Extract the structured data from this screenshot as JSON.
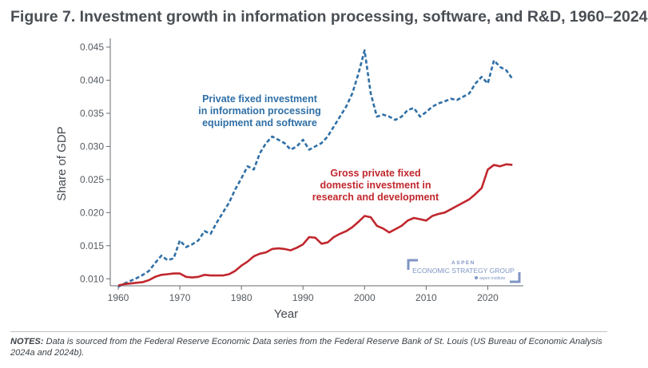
{
  "title": "Figure 7. Investment growth in information processing, software, and R&D, 1960–2024",
  "notes": {
    "label": "NOTES:",
    "text": "Data is sourced from the Federal Reserve Economic Data series from the Federal Reserve Bank of St. Louis (US Bureau of Economic Analysis 2024a and 2024b)."
  },
  "logo": {
    "line1": "ASPEN",
    "line2": "ECONOMIC STRATEGY GROUP",
    "line3": "aspen institute"
  },
  "chart_data": {
    "type": "line",
    "title": "Figure 7. Investment growth in information processing, software, and R&D, 1960–2024",
    "xlabel": "Year",
    "ylabel": "Share of GDP",
    "xlim": [
      1960,
      2025
    ],
    "ylim": [
      0.0075,
      0.045
    ],
    "xticks": [
      1960,
      1970,
      1980,
      1990,
      2000,
      2010,
      2020
    ],
    "xtick_labels": [
      "1960",
      "1970",
      "1980",
      "1990",
      "2000",
      "2010",
      "2020"
    ],
    "yticks": [
      0.01,
      0.015,
      0.02,
      0.025,
      0.03,
      0.035,
      0.04,
      0.045
    ],
    "ytick_labels": [
      "0.010",
      "0.015",
      "0.020",
      "0.025",
      "0.030",
      "0.035",
      "0.040",
      "0.045"
    ],
    "grid": false,
    "series": [
      {
        "name": "Private fixed investment in information processing equipment and software",
        "label_lines": [
          "Private fixed investment",
          "in information processing",
          "equipment and software"
        ],
        "color": "#2f6fa6",
        "style": "dashed",
        "x": [
          1960,
          1961,
          1962,
          1963,
          1964,
          1965,
          1966,
          1967,
          1968,
          1969,
          1970,
          1971,
          1972,
          1973,
          1974,
          1975,
          1976,
          1977,
          1978,
          1979,
          1980,
          1981,
          1982,
          1983,
          1984,
          1985,
          1986,
          1987,
          1988,
          1989,
          1990,
          1991,
          1992,
          1993,
          1994,
          1995,
          1996,
          1997,
          1998,
          1999,
          2000,
          2001,
          2002,
          2003,
          2004,
          2005,
          2006,
          2007,
          2008,
          2009,
          2010,
          2011,
          2012,
          2013,
          2014,
          2015,
          2016,
          2017,
          2018,
          2019,
          2020,
          2021,
          2022,
          2023,
          2024
        ],
        "values": [
          0.0088,
          0.0093,
          0.0097,
          0.0101,
          0.0106,
          0.0112,
          0.0124,
          0.0135,
          0.0128,
          0.0131,
          0.0158,
          0.0148,
          0.0152,
          0.0158,
          0.0172,
          0.0168,
          0.0185,
          0.02,
          0.0215,
          0.0235,
          0.0252,
          0.027,
          0.0265,
          0.029,
          0.0305,
          0.0315,
          0.031,
          0.0305,
          0.0295,
          0.03,
          0.031,
          0.0295,
          0.03,
          0.0305,
          0.0315,
          0.033,
          0.0345,
          0.036,
          0.038,
          0.041,
          0.0445,
          0.038,
          0.0345,
          0.0348,
          0.0345,
          0.034,
          0.0345,
          0.0355,
          0.0358,
          0.0345,
          0.0352,
          0.036,
          0.0365,
          0.0368,
          0.0372,
          0.037,
          0.0375,
          0.038,
          0.0395,
          0.0405,
          0.0395,
          0.043,
          0.042,
          0.0415,
          0.0402
        ]
      },
      {
        "name": "Gross private fixed domestic investment in research and development",
        "label_lines": [
          "Gross private fixed",
          "domestic investment in",
          "research and development"
        ],
        "color": "#c0272d",
        "style": "solid",
        "x": [
          1960,
          1961,
          1962,
          1963,
          1964,
          1965,
          1966,
          1967,
          1968,
          1969,
          1970,
          1971,
          1972,
          1973,
          1974,
          1975,
          1976,
          1977,
          1978,
          1979,
          1980,
          1981,
          1982,
          1983,
          1984,
          1985,
          1986,
          1987,
          1988,
          1989,
          1990,
          1991,
          1992,
          1993,
          1994,
          1995,
          1996,
          1997,
          1998,
          1999,
          2000,
          2001,
          2002,
          2003,
          2004,
          2005,
          2006,
          2007,
          2008,
          2009,
          2010,
          2011,
          2012,
          2013,
          2014,
          2015,
          2016,
          2017,
          2018,
          2019,
          2020,
          2021,
          2022,
          2023,
          2024
        ],
        "values": [
          0.009,
          0.0092,
          0.0093,
          0.0094,
          0.0095,
          0.0098,
          0.0103,
          0.0106,
          0.0107,
          0.0108,
          0.0108,
          0.0103,
          0.0102,
          0.0103,
          0.0106,
          0.0105,
          0.0105,
          0.0105,
          0.0107,
          0.0112,
          0.012,
          0.0126,
          0.0134,
          0.0138,
          0.014,
          0.0145,
          0.0146,
          0.0145,
          0.0143,
          0.0147,
          0.0152,
          0.0163,
          0.0162,
          0.0153,
          0.0155,
          0.0163,
          0.0168,
          0.0172,
          0.0178,
          0.0186,
          0.0195,
          0.0193,
          0.018,
          0.0176,
          0.017,
          0.0175,
          0.018,
          0.0188,
          0.0192,
          0.019,
          0.0188,
          0.0195,
          0.0198,
          0.02,
          0.0205,
          0.021,
          0.0215,
          0.022,
          0.0228,
          0.0237,
          0.0265,
          0.0272,
          0.027,
          0.0273,
          0.0272
        ]
      }
    ]
  }
}
